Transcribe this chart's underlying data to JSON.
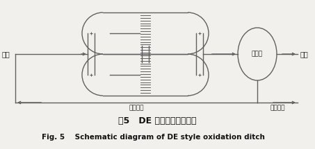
{
  "title_cn": "图5   DE 型氧化沟工作示意",
  "title_en": "Fig. 5    Schematic diagram of DE style oxidation ditch",
  "label_inlet": "进水",
  "label_outlet": "出水",
  "label_settler": "二沉池",
  "label_return_sludge": "回流污泥",
  "label_excess_sludge": "剩余污泥",
  "bg_color": "#f2f0ec",
  "line_color": "#606060",
  "line_width": 1.0,
  "font_color": "#222222",
  "title_font_color": "#111111"
}
